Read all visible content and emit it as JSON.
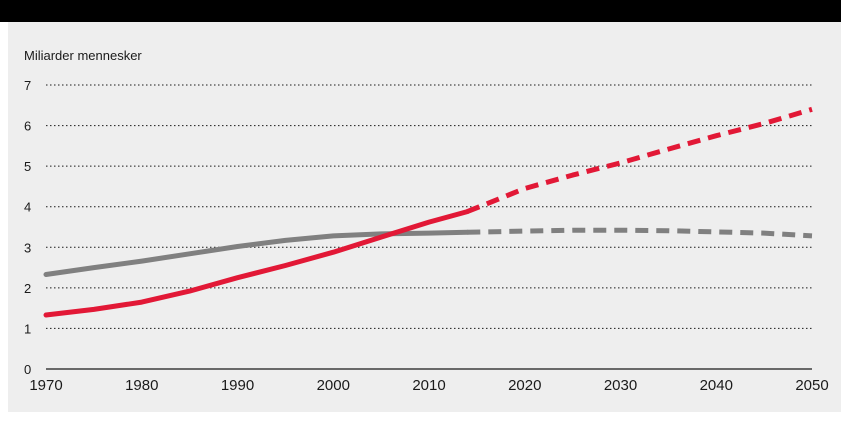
{
  "chart_data": {
    "type": "line",
    "title": "",
    "ylabel": "Miliarder mennesker",
    "xlabel": "",
    "xlim": [
      1970,
      2050
    ],
    "ylim": [
      0,
      7
    ],
    "x_ticks": [
      "1970",
      "1980",
      "1990",
      "2000",
      "2010",
      "2020",
      "2030",
      "2040",
      "2050"
    ],
    "y_ticks": [
      "0",
      "1",
      "2",
      "3",
      "4",
      "5",
      "6",
      "7"
    ],
    "grid": true,
    "legend": "none",
    "series": [
      {
        "color": "#e21836",
        "style": "solid",
        "x": [
          1970,
          1975,
          1980,
          1985,
          1990,
          1995,
          2000,
          2005,
          2010,
          2014
        ],
        "values": [
          1.33,
          1.47,
          1.65,
          1.92,
          2.25,
          2.55,
          2.88,
          3.25,
          3.62,
          3.88
        ]
      },
      {
        "color": "#e21836",
        "style": "dashed",
        "x": [
          2014,
          2020,
          2025,
          2030,
          2035,
          2040,
          2045,
          2050
        ],
        "values": [
          3.88,
          4.45,
          4.78,
          5.08,
          5.42,
          5.75,
          6.05,
          6.4
        ]
      },
      {
        "color": "#808080",
        "style": "solid",
        "x": [
          1970,
          1975,
          1980,
          1985,
          1990,
          1995,
          2000,
          2005,
          2010,
          2014
        ],
        "values": [
          2.33,
          2.5,
          2.66,
          2.84,
          3.02,
          3.17,
          3.28,
          3.33,
          3.35,
          3.37
        ]
      },
      {
        "color": "#808080",
        "style": "dashed",
        "x": [
          2014,
          2020,
          2025,
          2030,
          2035,
          2040,
          2045,
          2050
        ],
        "values": [
          3.37,
          3.4,
          3.42,
          3.42,
          3.41,
          3.38,
          3.35,
          3.28
        ]
      }
    ]
  }
}
